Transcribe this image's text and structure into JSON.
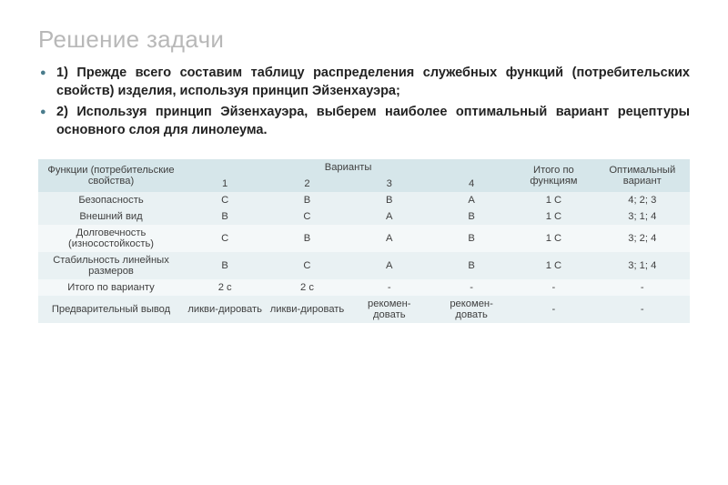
{
  "title": "Решение задачи",
  "bullets": [
    "1) Прежде всего составим таблицу распределения служебных функций (потребительских свойств) изделия, используя принцип Эйзенхауэра;",
    "2) Используя принцип Эйзенхауэра, выберем наиболее оптимальный вариант рецептуры основного слоя для линолеума."
  ],
  "table": {
    "header": {
      "func": "Функции (потребительские свойства)",
      "variants": "Варианты",
      "v1": "1",
      "v2": "2",
      "v3": "3",
      "v4": "4",
      "total": "Итого по функциям",
      "optimal": "Оптимальный вариант"
    },
    "rows": [
      {
        "name": "Безопасность",
        "v1": "C",
        "v2": "B",
        "v3": "B",
        "v4": "A",
        "total": "1 C",
        "opt": "4; 2; 3"
      },
      {
        "name": "Внешний вид",
        "v1": "B",
        "v2": "C",
        "v3": "A",
        "v4": "B",
        "total": "1 C",
        "opt": "3; 1; 4"
      },
      {
        "name": "Долговечность (износостойкость)",
        "v1": "C",
        "v2": "B",
        "v3": "A",
        "v4": "B",
        "total": "1 C",
        "opt": "3; 2; 4"
      },
      {
        "name": "Стабильность линейных размеров",
        "v1": "B",
        "v2": "C",
        "v3": "A",
        "v4": "B",
        "total": "1 C",
        "opt": "3; 1; 4"
      },
      {
        "name": "Итого по варианту",
        "v1": "2 с",
        "v2": "2 с",
        "v3": "-",
        "v4": "-",
        "total": "-",
        "opt": "-"
      },
      {
        "name": "Предварительный вывод",
        "v1": "ликви-дировать",
        "v2": "ликви-дировать",
        "v3": "рекомен-довать",
        "v4": "рекомен-довать",
        "total": "-",
        "opt": "-"
      }
    ],
    "colors": {
      "header_bg": "#d6e6ea",
      "row_odd": "#e9f1f3",
      "row_even": "#f4f8f9",
      "bullet": "#4a7c8c",
      "title": "#b8b8b8"
    }
  }
}
